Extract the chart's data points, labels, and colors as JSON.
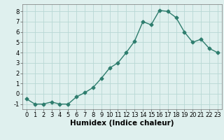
{
  "x": [
    0,
    1,
    2,
    3,
    4,
    5,
    6,
    7,
    8,
    9,
    10,
    11,
    12,
    13,
    14,
    15,
    16,
    17,
    18,
    19,
    20,
    21,
    22,
    23
  ],
  "y": [
    -0.5,
    -1.0,
    -1.0,
    -0.8,
    -1.0,
    -1.0,
    -0.3,
    0.1,
    0.6,
    1.5,
    2.5,
    3.0,
    4.0,
    5.1,
    7.0,
    6.7,
    8.1,
    8.0,
    7.4,
    6.0,
    5.0,
    5.3,
    4.4,
    4.0
  ],
  "line_color": "#2e7d6e",
  "marker": "D",
  "marker_size": 2.5,
  "bg_color": "#dff0ee",
  "grid_color": "#b8d8d4",
  "xlabel": "Humidex (Indice chaleur)",
  "xlim": [
    -0.5,
    23.5
  ],
  "ylim": [
    -1.5,
    8.7
  ],
  "yticks": [
    -1,
    0,
    1,
    2,
    3,
    4,
    5,
    6,
    7,
    8
  ],
  "xticks": [
    0,
    1,
    2,
    3,
    4,
    5,
    6,
    7,
    8,
    9,
    10,
    11,
    12,
    13,
    14,
    15,
    16,
    17,
    18,
    19,
    20,
    21,
    22,
    23
  ],
  "tick_label_fontsize": 6,
  "xlabel_fontsize": 7.5,
  "line_width": 1.0
}
